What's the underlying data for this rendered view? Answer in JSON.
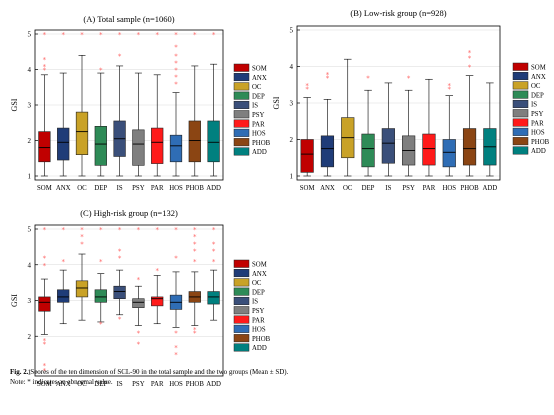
{
  "colors": {
    "SOM": "#c00000",
    "ANX": "#1f3c78",
    "OC": "#c9a227",
    "DEP": "#2e8b57",
    "IS": "#3a4f7a",
    "PSY": "#7f7f7f",
    "PAR": "#ff1a1a",
    "HOS": "#2f6db5",
    "PHOB": "#8b4513",
    "ADD": "#00807f",
    "outlier": "#ff6666",
    "median": "#000000",
    "grid": "#d9d9d9"
  },
  "chart_data": [
    {
      "type": "box",
      "title": "(A) Total sample  (n=1060)",
      "ylabel": "GSI",
      "ylim": [
        1,
        5
      ],
      "yticks": [
        1,
        2,
        3,
        4,
        5
      ],
      "categories": [
        "SOM",
        "ANX",
        "OC",
        "DEP",
        "IS",
        "PSY",
        "PAR",
        "HOS",
        "PHOB",
        "ADD"
      ],
      "legend_position": "right",
      "boxes": [
        {
          "q1": 1.4,
          "median": 1.8,
          "q3": 2.25,
          "whisker_low": 1.0,
          "whisker_high": 3.85,
          "outliers": [
            4.0,
            4.1,
            4.3,
            5.0
          ]
        },
        {
          "q1": 1.45,
          "median": 1.95,
          "q3": 2.35,
          "whisker_low": 1.0,
          "whisker_high": 3.9,
          "outliers": [
            5.0
          ]
        },
        {
          "q1": 1.6,
          "median": 2.25,
          "q3": 2.8,
          "whisker_low": 1.0,
          "whisker_high": 4.4,
          "outliers": [
            5.0
          ]
        },
        {
          "q1": 1.3,
          "median": 1.9,
          "q3": 2.4,
          "whisker_low": 1.0,
          "whisker_high": 3.9,
          "outliers": [
            4.0,
            5.0
          ]
        },
        {
          "q1": 1.55,
          "median": 2.05,
          "q3": 2.55,
          "whisker_low": 1.0,
          "whisker_high": 4.1,
          "outliers": [
            4.4,
            5.0
          ]
        },
        {
          "q1": 1.3,
          "median": 1.9,
          "q3": 2.3,
          "whisker_low": 1.0,
          "whisker_high": 3.9,
          "outliers": [
            5.0
          ]
        },
        {
          "q1": 1.35,
          "median": 1.95,
          "q3": 2.35,
          "whisker_low": 1.0,
          "whisker_high": 3.85,
          "outliers": [
            5.0
          ]
        },
        {
          "q1": 1.4,
          "median": 1.85,
          "q3": 2.15,
          "whisker_low": 1.0,
          "whisker_high": 3.35,
          "outliers": [
            3.6,
            3.8,
            4.0,
            4.2,
            4.4,
            4.65,
            5.0
          ]
        },
        {
          "q1": 1.4,
          "median": 2.0,
          "q3": 2.55,
          "whisker_low": 1.0,
          "whisker_high": 4.1,
          "outliers": [
            5.0
          ]
        },
        {
          "q1": 1.4,
          "median": 1.95,
          "q3": 2.55,
          "whisker_low": 1.0,
          "whisker_high": 4.15,
          "outliers": [
            5.0
          ]
        }
      ]
    },
    {
      "type": "box",
      "title": "(B) Low-risk group  (n=928)",
      "ylabel": "GSI",
      "ylim": [
        1,
        5
      ],
      "yticks": [
        1,
        2,
        3,
        4,
        5
      ],
      "categories": [
        "SOM",
        "ANX",
        "OC",
        "DEP",
        "IS",
        "PSY",
        "PAR",
        "HOS",
        "PHOB",
        "ADD"
      ],
      "legend_position": "right",
      "boxes": [
        {
          "q1": 1.1,
          "median": 1.6,
          "q3": 2.0,
          "whisker_low": 1.0,
          "whisker_high": 3.15,
          "outliers": [
            3.4,
            3.5
          ]
        },
        {
          "q1": 1.25,
          "median": 1.75,
          "q3": 2.1,
          "whisker_low": 1.0,
          "whisker_high": 3.1,
          "outliers": [
            3.7,
            3.8
          ]
        },
        {
          "q1": 1.5,
          "median": 2.05,
          "q3": 2.6,
          "whisker_low": 1.0,
          "whisker_high": 4.2,
          "outliers": []
        },
        {
          "q1": 1.25,
          "median": 1.75,
          "q3": 2.15,
          "whisker_low": 1.0,
          "whisker_high": 3.35,
          "outliers": [
            3.7
          ]
        },
        {
          "q1": 1.35,
          "median": 1.9,
          "q3": 2.3,
          "whisker_low": 1.0,
          "whisker_high": 3.55,
          "outliers": []
        },
        {
          "q1": 1.3,
          "median": 1.7,
          "q3": 2.1,
          "whisker_low": 1.0,
          "whisker_high": 3.35,
          "outliers": [
            3.7
          ]
        },
        {
          "q1": 1.3,
          "median": 1.75,
          "q3": 2.15,
          "whisker_low": 1.0,
          "whisker_high": 3.65,
          "outliers": []
        },
        {
          "q1": 1.25,
          "median": 1.65,
          "q3": 2.0,
          "whisker_low": 1.0,
          "whisker_high": 3.2,
          "outliers": [
            3.4,
            3.5
          ]
        },
        {
          "q1": 1.3,
          "median": 1.75,
          "q3": 2.3,
          "whisker_low": 1.0,
          "whisker_high": 3.75,
          "outliers": [
            4.0,
            4.25,
            4.4
          ]
        },
        {
          "q1": 1.3,
          "median": 1.8,
          "q3": 2.3,
          "whisker_low": 1.0,
          "whisker_high": 3.55,
          "outliers": []
        }
      ]
    },
    {
      "type": "box",
      "title": "(C) High-risk group  (n=132)",
      "ylabel": "GSI",
      "ylim": [
        1,
        5
      ],
      "yticks": [
        1,
        2,
        3,
        4,
        5
      ],
      "categories": [
        "SOM",
        "ANX",
        "OC",
        "DEP",
        "IS",
        "PSY",
        "PAR",
        "HOS",
        "PHOB",
        "ADD"
      ],
      "legend_position": "right",
      "boxes": [
        {
          "q1": 2.7,
          "median": 2.95,
          "q3": 3.1,
          "whisker_low": 2.05,
          "whisker_high": 3.6,
          "outliers": [
            1.05,
            1.2,
            1.8,
            1.9,
            4.0,
            4.2,
            5.0
          ]
        },
        {
          "q1": 2.95,
          "median": 3.1,
          "q3": 3.3,
          "whisker_low": 2.35,
          "whisker_high": 3.85,
          "outliers": [
            4.1,
            5.0
          ]
        },
        {
          "q1": 3.1,
          "median": 3.35,
          "q3": 3.55,
          "whisker_low": 2.45,
          "whisker_high": 4.3,
          "outliers": [
            4.6,
            4.8,
            5.0
          ]
        },
        {
          "q1": 2.95,
          "median": 3.1,
          "q3": 3.3,
          "whisker_low": 2.4,
          "whisker_high": 3.75,
          "outliers": [
            2.35,
            4.1,
            5.0
          ]
        },
        {
          "q1": 3.05,
          "median": 3.25,
          "q3": 3.4,
          "whisker_low": 2.6,
          "whisker_high": 3.85,
          "outliers": [
            2.5,
            4.2,
            4.4,
            5.0
          ]
        },
        {
          "q1": 2.8,
          "median": 2.95,
          "q3": 3.05,
          "whisker_low": 2.3,
          "whisker_high": 3.4,
          "outliers": [
            1.8,
            2.1,
            3.6,
            5.0
          ]
        },
        {
          "q1": 2.85,
          "median": 3.05,
          "q3": 3.1,
          "whisker_low": 2.35,
          "whisker_high": 3.7,
          "outliers": [
            3.85,
            5.0
          ]
        },
        {
          "q1": 2.75,
          "median": 2.95,
          "q3": 3.15,
          "whisker_low": 2.25,
          "whisker_high": 3.8,
          "outliers": [
            1.5,
            1.7,
            2.1,
            4.2,
            5.0
          ]
        },
        {
          "q1": 2.95,
          "median": 3.1,
          "q3": 3.25,
          "whisker_low": 2.3,
          "whisker_high": 3.8,
          "outliers": [
            2.1,
            2.2,
            4.1,
            4.4,
            4.6,
            4.8,
            5.0
          ]
        },
        {
          "q1": 2.9,
          "median": 3.1,
          "q3": 3.25,
          "whisker_low": 2.45,
          "whisker_high": 3.85,
          "outliers": [
            4.1,
            4.4,
            4.6,
            5.0
          ]
        }
      ]
    }
  ],
  "caption": {
    "fig_label": "Fig. 2.",
    "fig_text": " Scores of the ten dimension of SCL-90 in the total sample and the two groups (Mean  ±  SD).",
    "note": "Note: * indicates an abnormal value."
  }
}
